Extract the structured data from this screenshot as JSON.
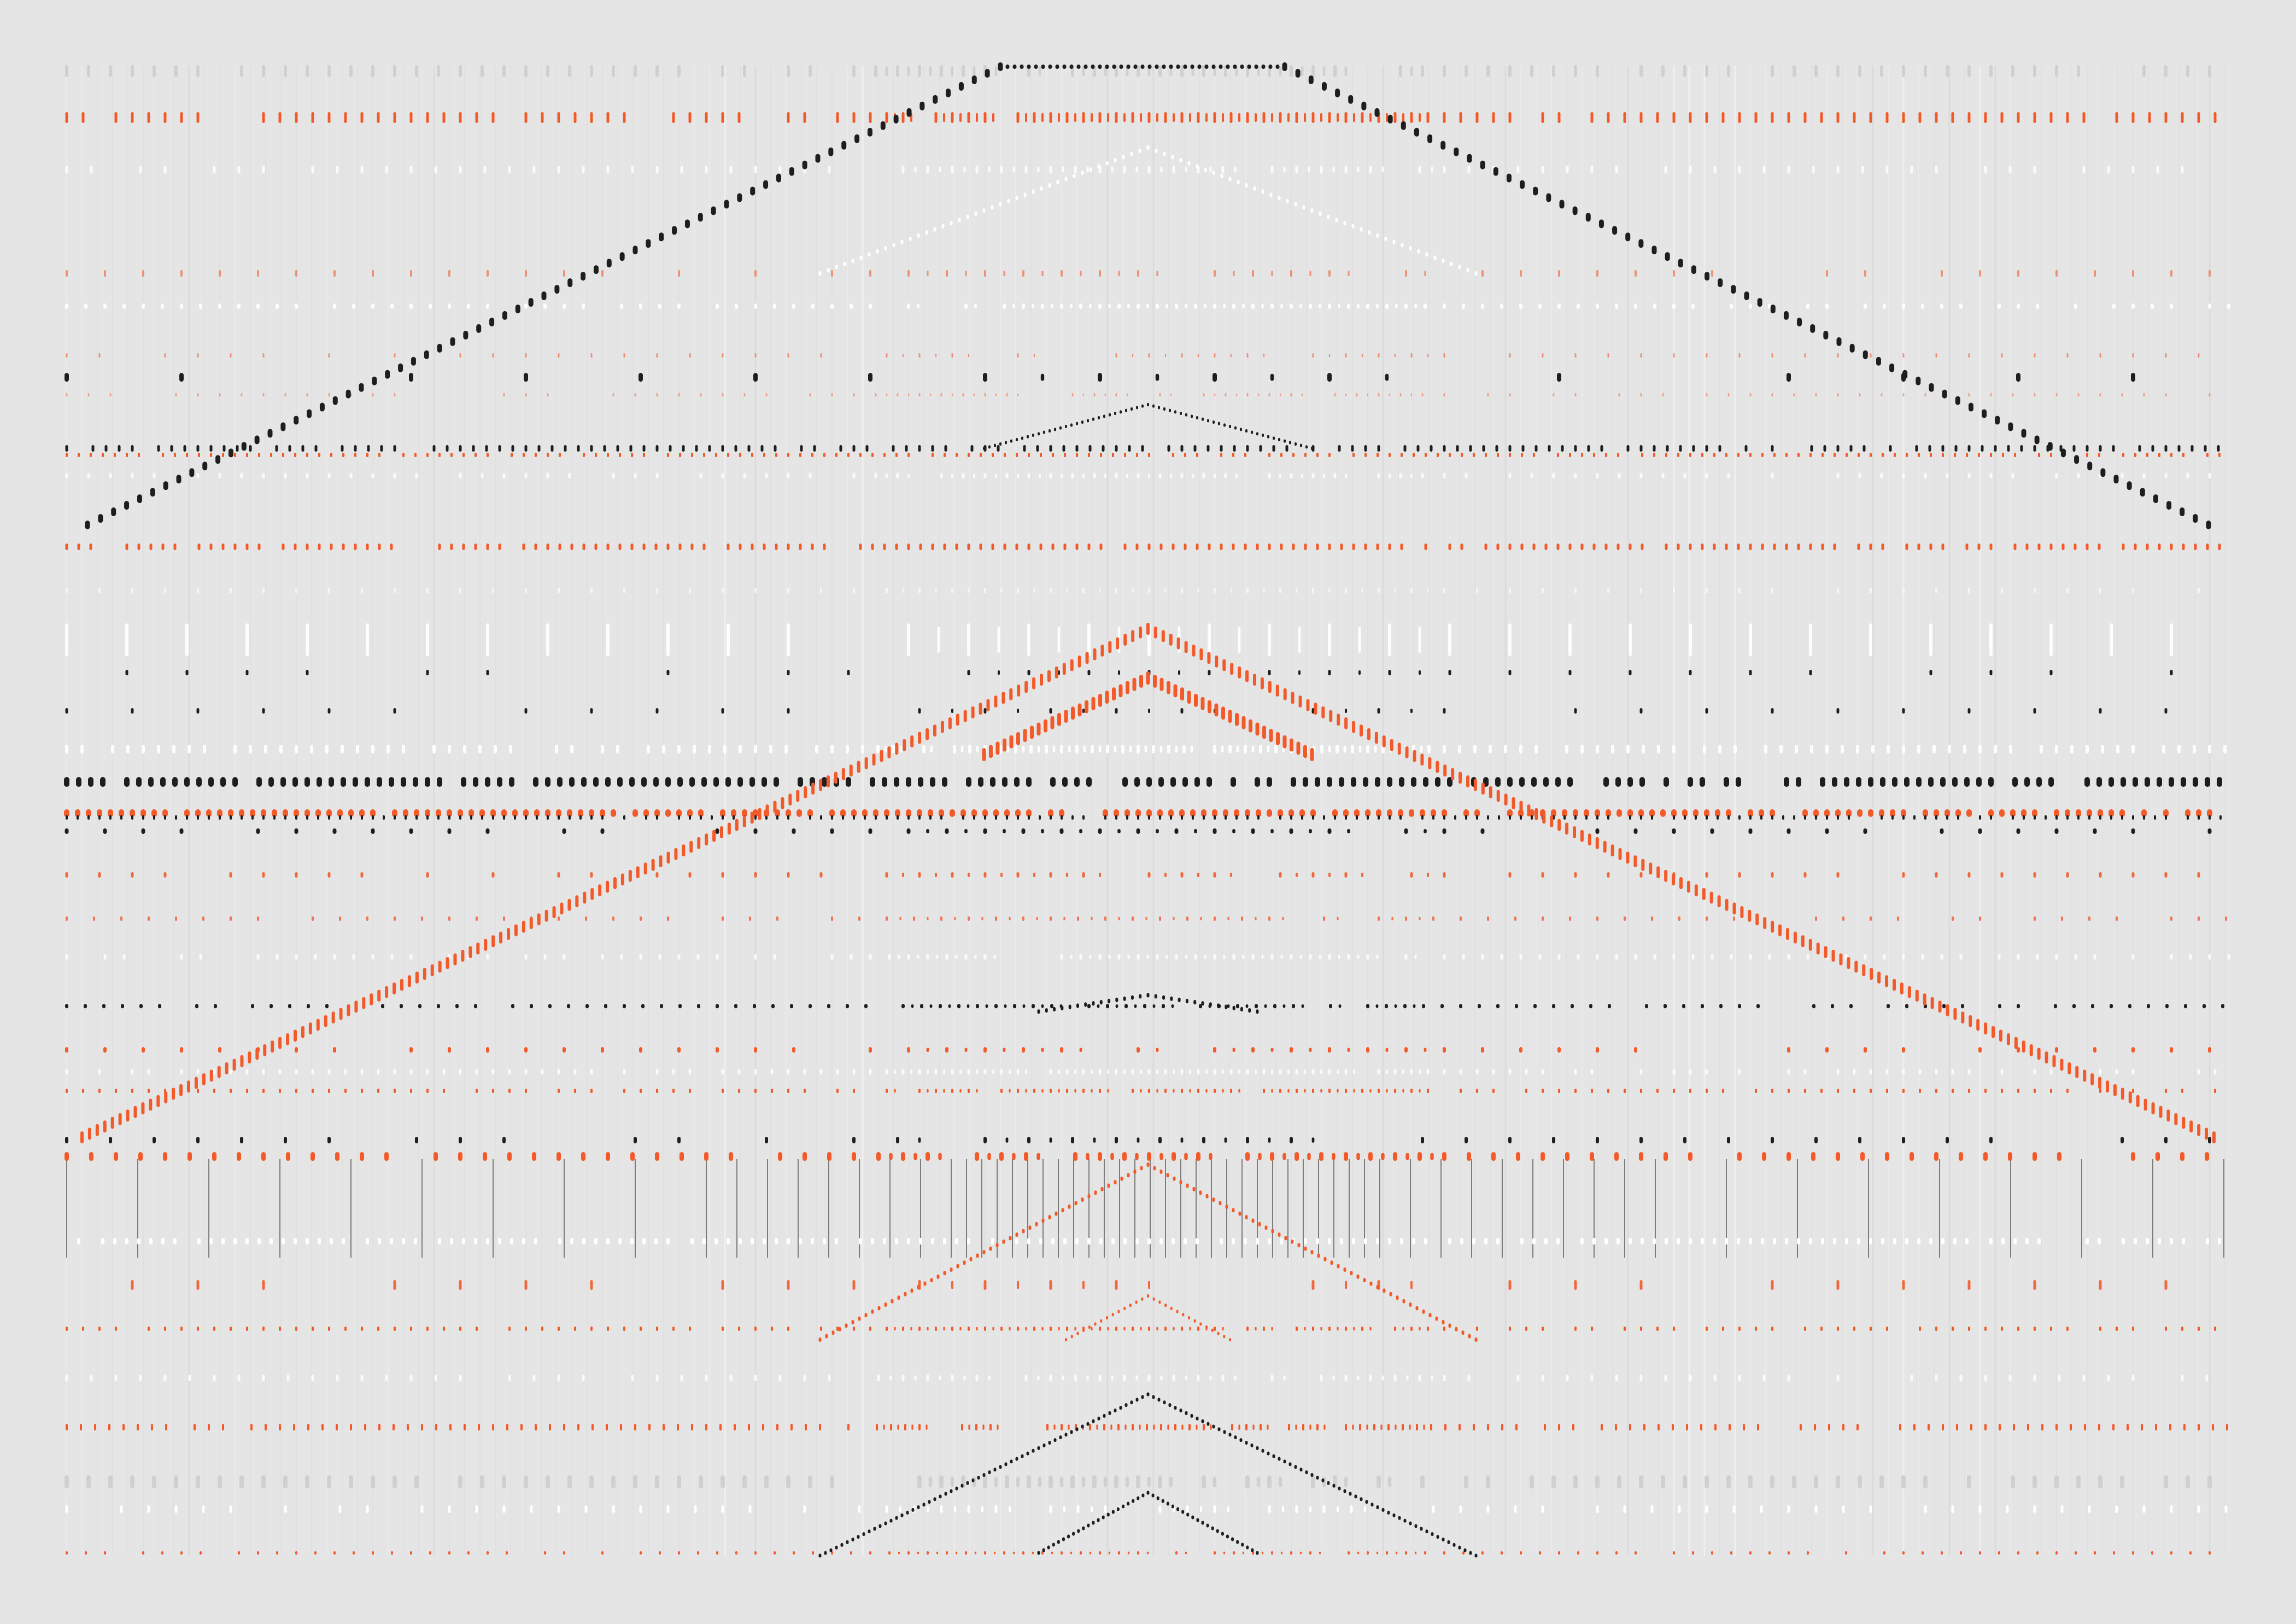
{
  "artwork": {
    "background": "#e5e5e5",
    "palette": {
      "orange": "#f25a2a",
      "black": "#1e1e1e",
      "white": "#ffffff",
      "grey": "#d0d0d0"
    }
  }
}
